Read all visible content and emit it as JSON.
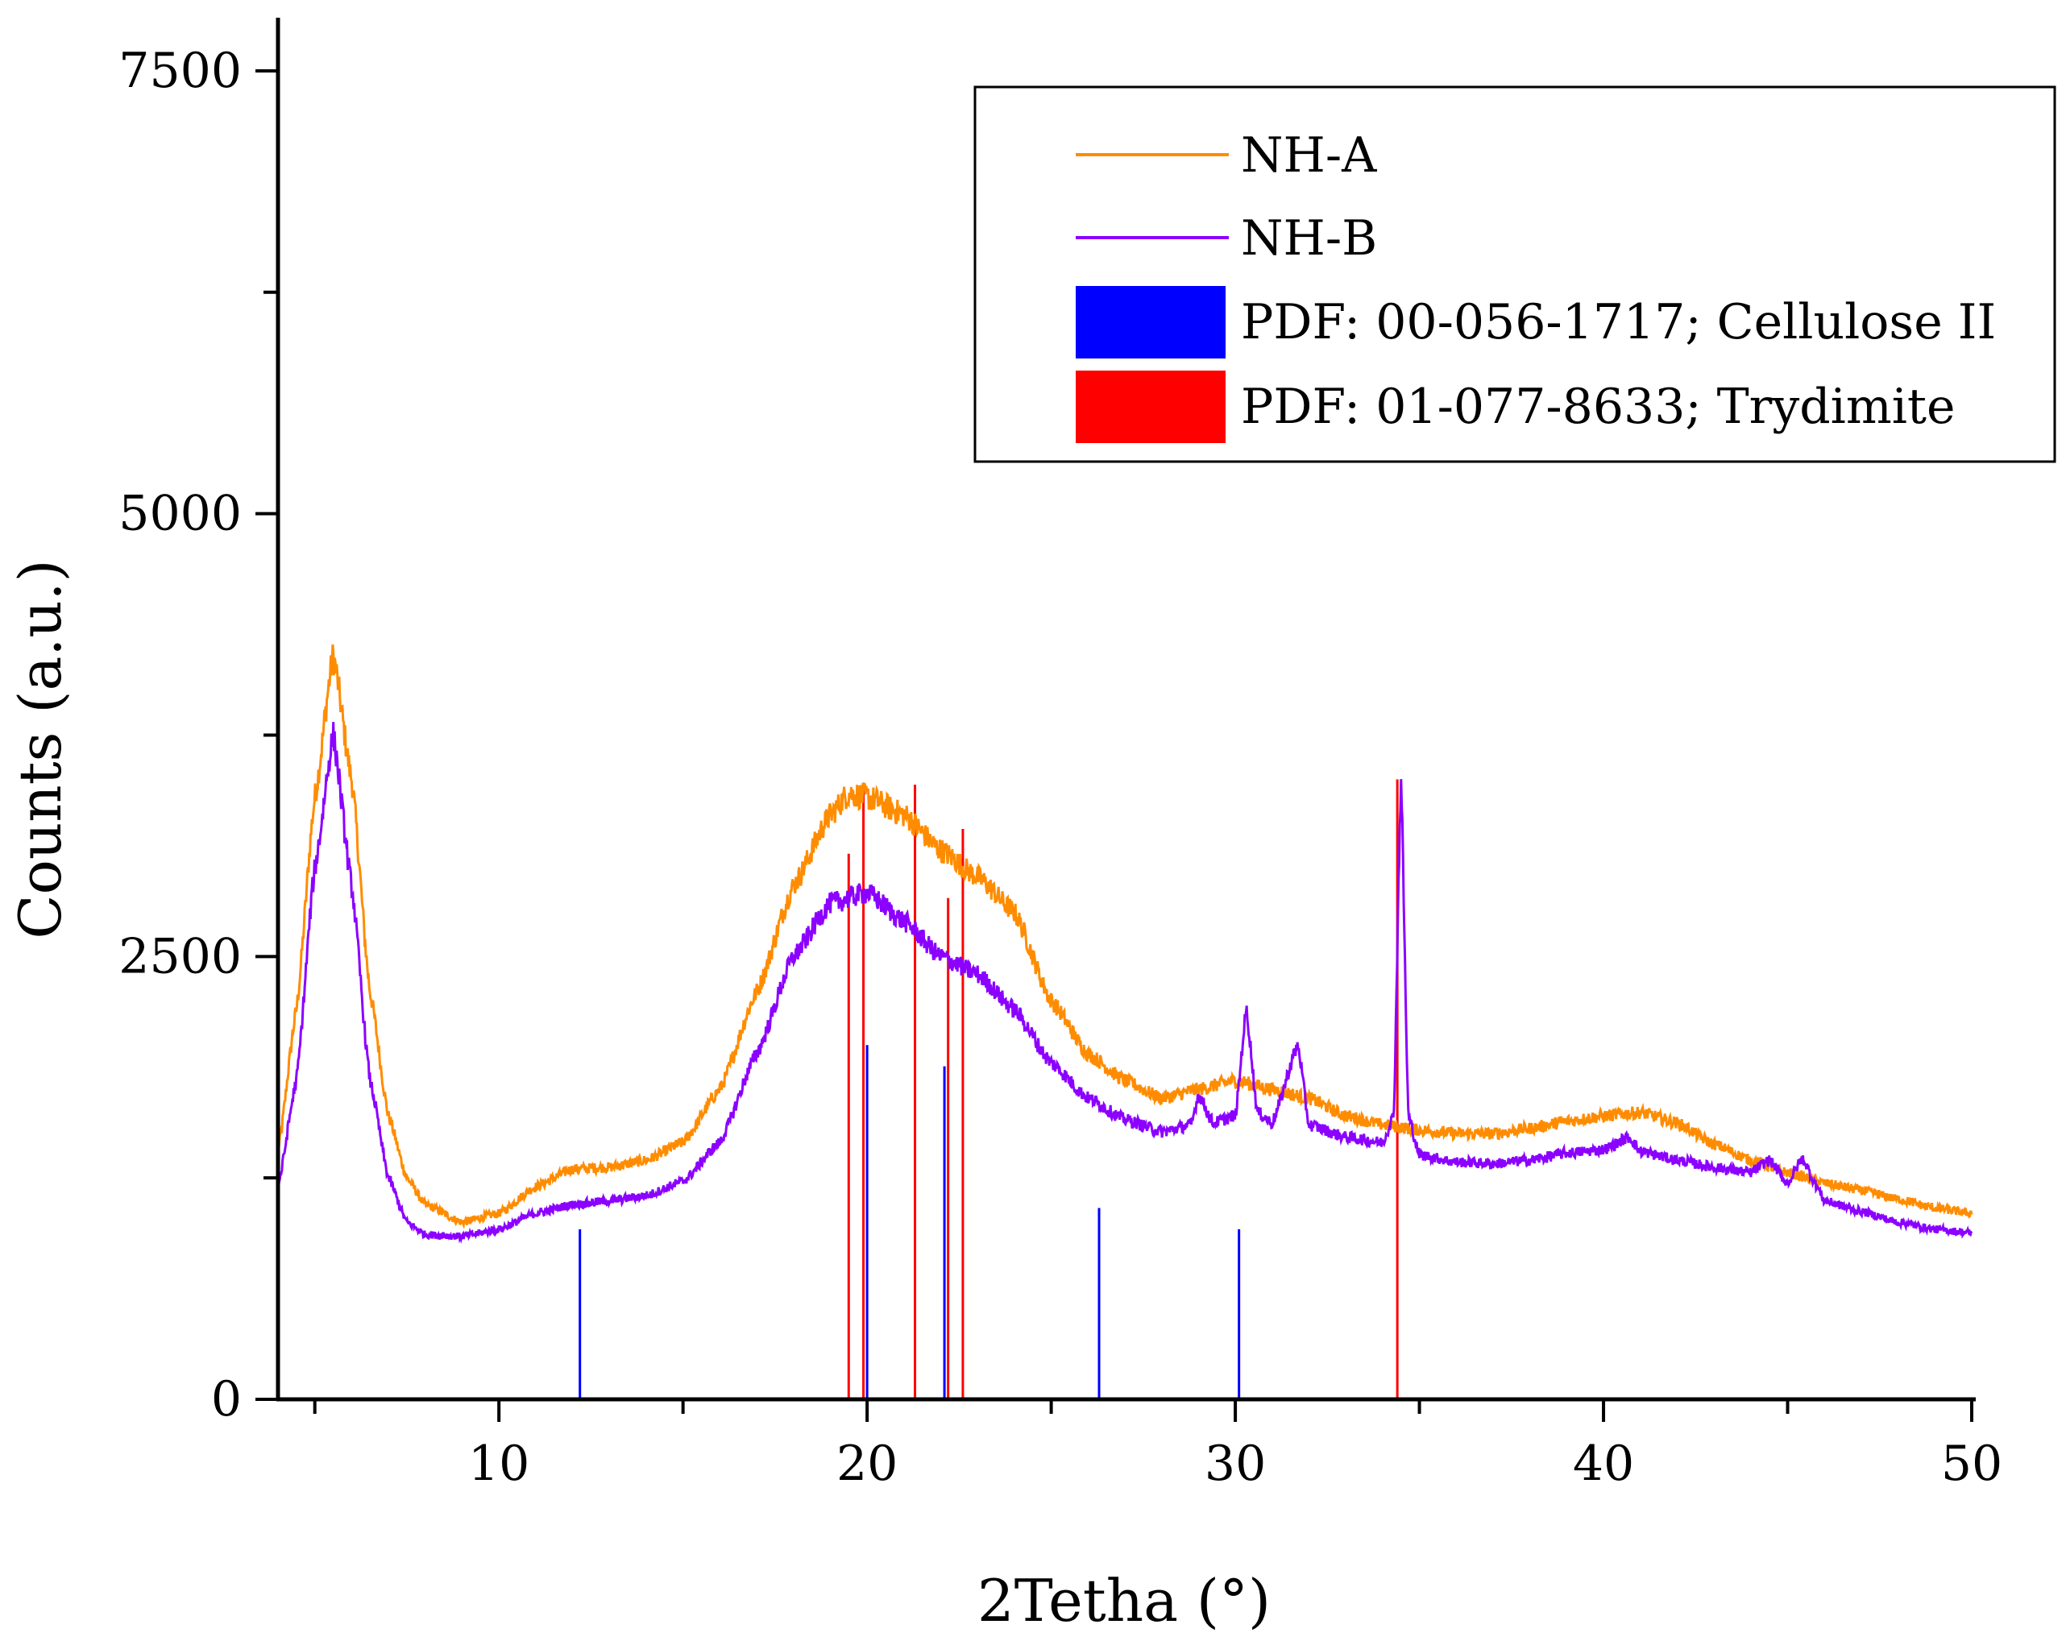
{
  "chart_data": {
    "type": "line",
    "xlabel": "2Tetha (°)",
    "ylabel": "Counts (a.u.)",
    "xlim": [
      4,
      50
    ],
    "ylim": [
      0,
      7800
    ],
    "x_ticks": [
      10,
      20,
      30,
      40,
      50
    ],
    "y_ticks": [
      0,
      2500,
      5000,
      7500
    ],
    "legend_position": "top-right",
    "series": [
      {
        "name": "NH-A",
        "color": "#ff8c00",
        "points": [
          [
            4,
            1400
          ],
          [
            4.5,
            2200
          ],
          [
            5,
            3400
          ],
          [
            5.5,
            4200
          ],
          [
            6,
            3500
          ],
          [
            6.5,
            2300
          ],
          [
            7,
            1600
          ],
          [
            7.5,
            1250
          ],
          [
            8,
            1100
          ],
          [
            9,
            1000
          ],
          [
            10,
            1050
          ],
          [
            11,
            1200
          ],
          [
            12,
            1300
          ],
          [
            13,
            1310
          ],
          [
            14,
            1350
          ],
          [
            15,
            1450
          ],
          [
            16,
            1750
          ],
          [
            17,
            2300
          ],
          [
            18,
            2900
          ],
          [
            19,
            3300
          ],
          [
            19.5,
            3420
          ],
          [
            20,
            3400
          ],
          [
            21,
            3300
          ],
          [
            22,
            3100
          ],
          [
            23,
            2950
          ],
          [
            24,
            2750
          ],
          [
            25,
            2250
          ],
          [
            26,
            1950
          ],
          [
            27,
            1800
          ],
          [
            28,
            1700
          ],
          [
            29,
            1750
          ],
          [
            30,
            1800
          ],
          [
            31,
            1750
          ],
          [
            32,
            1700
          ],
          [
            33,
            1600
          ],
          [
            34,
            1550
          ],
          [
            35,
            1520
          ],
          [
            36,
            1500
          ],
          [
            37,
            1500
          ],
          [
            38,
            1530
          ],
          [
            39,
            1570
          ],
          [
            40,
            1600
          ],
          [
            41,
            1620
          ],
          [
            42,
            1560
          ],
          [
            43,
            1440
          ],
          [
            44,
            1350
          ],
          [
            45,
            1280
          ],
          [
            46,
            1220
          ],
          [
            47,
            1180
          ],
          [
            48,
            1130
          ],
          [
            49,
            1080
          ],
          [
            50,
            1050
          ]
        ]
      },
      {
        "name": "NH-B",
        "color": "#8b00ff",
        "points": [
          [
            4,
            1200
          ],
          [
            4.5,
            1800
          ],
          [
            5,
            3000
          ],
          [
            5.5,
            3750
          ],
          [
            6,
            2900
          ],
          [
            6.5,
            1800
          ],
          [
            7,
            1250
          ],
          [
            7.5,
            1000
          ],
          [
            8,
            930
          ],
          [
            9,
            920
          ],
          [
            10,
            960
          ],
          [
            11,
            1050
          ],
          [
            12,
            1100
          ],
          [
            13,
            1120
          ],
          [
            14,
            1150
          ],
          [
            15,
            1230
          ],
          [
            16,
            1450
          ],
          [
            17,
            1950
          ],
          [
            18,
            2500
          ],
          [
            19,
            2800
          ],
          [
            20,
            2860
          ],
          [
            21,
            2700
          ],
          [
            22,
            2500
          ],
          [
            23,
            2400
          ],
          [
            24,
            2200
          ],
          [
            25,
            1900
          ],
          [
            26,
            1700
          ],
          [
            27,
            1580
          ],
          [
            28,
            1510
          ],
          [
            28.8,
            1550
          ],
          [
            29,
            1720
          ],
          [
            29.4,
            1560
          ],
          [
            30,
            1600
          ],
          [
            30.3,
            2200
          ],
          [
            30.6,
            1620
          ],
          [
            31,
            1560
          ],
          [
            31.7,
            2000
          ],
          [
            32,
            1550
          ],
          [
            33,
            1480
          ],
          [
            34,
            1450
          ],
          [
            34.3,
            1600
          ],
          [
            34.5,
            3500
          ],
          [
            34.7,
            1600
          ],
          [
            35,
            1380
          ],
          [
            36,
            1340
          ],
          [
            37,
            1330
          ],
          [
            38,
            1350
          ],
          [
            39,
            1390
          ],
          [
            40,
            1410
          ],
          [
            40.7,
            1480
          ],
          [
            41,
            1400
          ],
          [
            42,
            1350
          ],
          [
            43,
            1310
          ],
          [
            44,
            1280
          ],
          [
            44.5,
            1350
          ],
          [
            45,
            1220
          ],
          [
            45.4,
            1360
          ],
          [
            45.8,
            1200
          ],
          [
            46,
            1120
          ],
          [
            47,
            1060
          ],
          [
            48,
            1000
          ],
          [
            49,
            960
          ],
          [
            50,
            940
          ]
        ]
      }
    ],
    "reference_lines": [
      {
        "name": "PDF: 00-056-1717; Cellulose II",
        "color": "#0000ff",
        "positions": [
          12.2,
          20.0,
          22.1,
          26.3,
          30.1
        ],
        "intensities": [
          960,
          2000,
          1880,
          1080,
          960
        ]
      },
      {
        "name": "PDF: 01-077-8633; Trydimite",
        "color": "#ff0000",
        "positions": [
          19.5,
          19.9,
          21.3,
          22.2,
          22.6,
          34.4
        ],
        "intensities": [
          3080,
          3480,
          3470,
          2830,
          3220,
          3500
        ]
      }
    ]
  }
}
